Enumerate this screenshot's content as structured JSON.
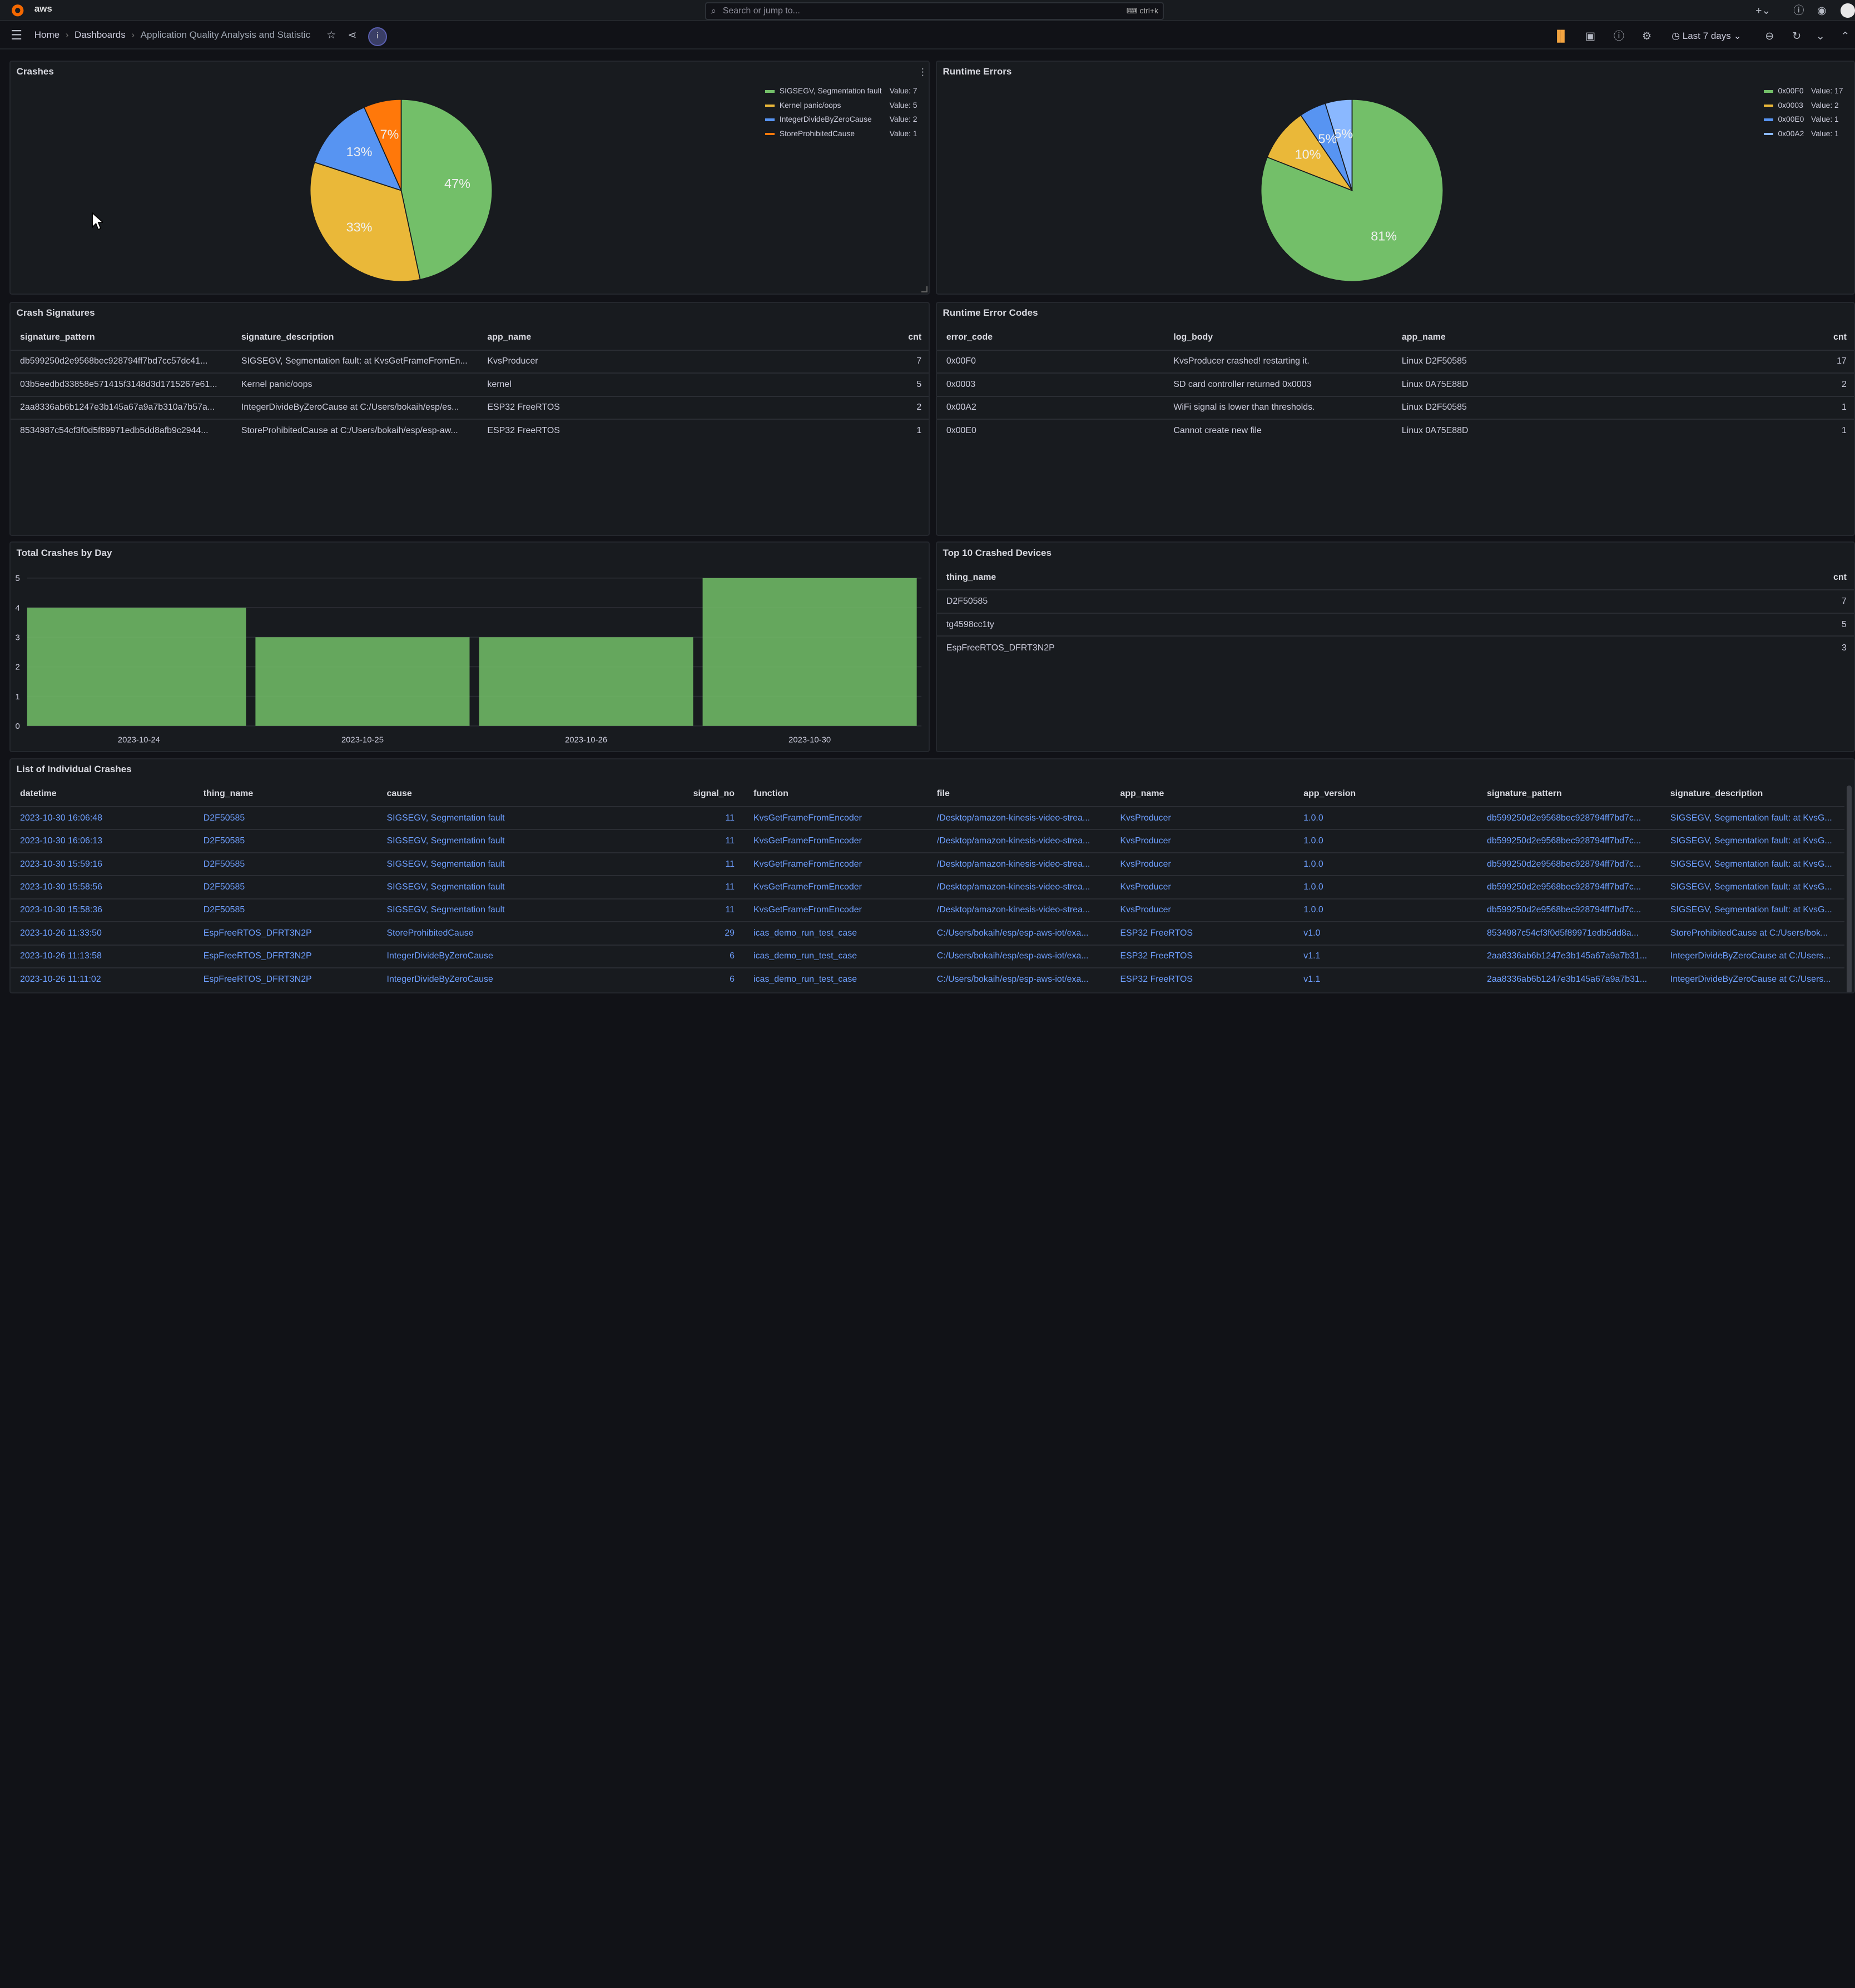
{
  "app": {
    "brand_text": "aws"
  },
  "topbar": {
    "search_placeholder": "Search or jump to...",
    "search_shortcut": "ctrl+k"
  },
  "breadcrumb": {
    "home": "Home",
    "dashboards": "Dashboards",
    "current": "Application Quality Analysis and Statistic"
  },
  "toolbar": {
    "time_range": "Last 7 days"
  },
  "crashes_panel": {
    "title": "Crashes"
  },
  "runtime_panel": {
    "title": "Runtime Errors"
  },
  "crash_signatures": {
    "title": "Crash Signatures",
    "columns": [
      "signature_pattern",
      "signature_description",
      "app_name",
      "cnt"
    ],
    "rows": [
      [
        "db599250d2e9568bec928794ff7bd7cc57dc41...",
        "SIGSEGV, Segmentation fault: at KvsGetFrameFromEn...",
        "KvsProducer",
        "7"
      ],
      [
        "03b5eedbd33858e571415f3148d3d1715267e61...",
        "Kernel panic/oops",
        "kernel",
        "5"
      ],
      [
        "2aa8336ab6b1247e3b145a67a9a7b310a7b57a...",
        "IntegerDivideByZeroCause at C:/Users/bokaih/esp/es...",
        "ESP32 FreeRTOS",
        "2"
      ],
      [
        "8534987c54cf3f0d5f89971edb5dd8afb9c2944...",
        "StoreProhibitedCause at C:/Users/bokaih/esp/esp-aw...",
        "ESP32 FreeRTOS",
        "1"
      ]
    ]
  },
  "runtime_codes": {
    "title": "Runtime Error Codes",
    "columns": [
      "error_code",
      "log_body",
      "app_name",
      "cnt"
    ],
    "rows": [
      [
        "0x00F0",
        "KvsProducer crashed! restarting it.",
        "Linux D2F50585",
        "17"
      ],
      [
        "0x0003",
        "SD card controller returned 0x0003",
        "Linux 0A75E88D",
        "2"
      ],
      [
        "0x00A2",
        "WiFi signal is lower than thresholds.",
        "Linux D2F50585",
        "1"
      ],
      [
        "0x00E0",
        "Cannot create new file",
        "Linux 0A75E88D",
        "1"
      ]
    ]
  },
  "crashes_by_day": {
    "title": "Total Crashes by Day"
  },
  "top_devices": {
    "title": "Top 10 Crashed Devices",
    "columns": [
      "thing_name",
      "cnt"
    ],
    "rows": [
      [
        "D2F50585",
        "7"
      ],
      [
        "tg4598cc1ty",
        "5"
      ],
      [
        "EspFreeRTOS_DFRT3N2P",
        "3"
      ]
    ]
  },
  "crash_list": {
    "title": "List of Individual Crashes",
    "columns": [
      "datetime",
      "thing_name",
      "cause",
      "signal_no",
      "function",
      "file",
      "app_name",
      "app_version",
      "signature_pattern",
      "signature_description"
    ],
    "rows": [
      [
        "2023-10-30 16:06:48",
        "D2F50585",
        "SIGSEGV, Segmentation fault",
        "11",
        "KvsGetFrameFromEncoder",
        "/Desktop/amazon-kinesis-video-strea...",
        "KvsProducer",
        "1.0.0",
        "db599250d2e9568bec928794ff7bd7c...",
        "SIGSEGV, Segmentation fault: at KvsG..."
      ],
      [
        "2023-10-30 16:06:13",
        "D2F50585",
        "SIGSEGV, Segmentation fault",
        "11",
        "KvsGetFrameFromEncoder",
        "/Desktop/amazon-kinesis-video-strea...",
        "KvsProducer",
        "1.0.0",
        "db599250d2e9568bec928794ff7bd7c...",
        "SIGSEGV, Segmentation fault: at KvsG..."
      ],
      [
        "2023-10-30 15:59:16",
        "D2F50585",
        "SIGSEGV, Segmentation fault",
        "11",
        "KvsGetFrameFromEncoder",
        "/Desktop/amazon-kinesis-video-strea...",
        "KvsProducer",
        "1.0.0",
        "db599250d2e9568bec928794ff7bd7c...",
        "SIGSEGV, Segmentation fault: at KvsG..."
      ],
      [
        "2023-10-30 15:58:56",
        "D2F50585",
        "SIGSEGV, Segmentation fault",
        "11",
        "KvsGetFrameFromEncoder",
        "/Desktop/amazon-kinesis-video-strea...",
        "KvsProducer",
        "1.0.0",
        "db599250d2e9568bec928794ff7bd7c...",
        "SIGSEGV, Segmentation fault: at KvsG..."
      ],
      [
        "2023-10-30 15:58:36",
        "D2F50585",
        "SIGSEGV, Segmentation fault",
        "11",
        "KvsGetFrameFromEncoder",
        "/Desktop/amazon-kinesis-video-strea...",
        "KvsProducer",
        "1.0.0",
        "db599250d2e9568bec928794ff7bd7c...",
        "SIGSEGV, Segmentation fault: at KvsG..."
      ],
      [
        "2023-10-26 11:33:50",
        "EspFreeRTOS_DFRT3N2P",
        "StoreProhibitedCause",
        "29",
        "icas_demo_run_test_case",
        "C:/Users/bokaih/esp/esp-aws-iot/exa...",
        "ESP32 FreeRTOS",
        "v1.0",
        "8534987c54cf3f0d5f89971edb5dd8a...",
        "StoreProhibitedCause at C:/Users/bok..."
      ],
      [
        "2023-10-26 11:13:58",
        "EspFreeRTOS_DFRT3N2P",
        "IntegerDivideByZeroCause",
        "6",
        "icas_demo_run_test_case",
        "C:/Users/bokaih/esp/esp-aws-iot/exa...",
        "ESP32 FreeRTOS",
        "v1.1",
        "2aa8336ab6b1247e3b145a67a9a7b31...",
        "IntegerDivideByZeroCause at C:/Users..."
      ],
      [
        "2023-10-26 11:11:02",
        "EspFreeRTOS_DFRT3N2P",
        "IntegerDivideByZeroCause",
        "6",
        "icas_demo_run_test_case",
        "C:/Users/bokaih/esp/esp-aws-iot/exa...",
        "ESP32 FreeRTOS",
        "v1.1",
        "2aa8336ab6b1247e3b145a67a9a7b31...",
        "IntegerDivideByZeroCause at C:/Users..."
      ]
    ]
  },
  "colors": {
    "green": "#73bf69",
    "yellow": "#f2cc0c",
    "blue": "#5794f2",
    "orange": "#ff780a",
    "link": "#6e9fff"
  },
  "chart_data": [
    {
      "type": "pie",
      "title": "Crashes",
      "series": [
        {
          "name": "SIGSEGV, Segmentation fault",
          "value": 7,
          "label": "47%",
          "value_text": "Value: 7",
          "color": "#73bf69"
        },
        {
          "name": "Kernel panic/oops",
          "value": 5,
          "label": "33%",
          "value_text": "Value: 5",
          "color": "#eab839"
        },
        {
          "name": "IntegerDivideByZeroCause",
          "value": 2,
          "label": "13%",
          "value_text": "Value: 2",
          "color": "#5794f2"
        },
        {
          "name": "StoreProhibitedCause",
          "value": 1,
          "label": "7%",
          "value_text": "Value: 1",
          "color": "#ff780a"
        }
      ],
      "legend": "top-right"
    },
    {
      "type": "pie",
      "title": "Runtime Errors",
      "series": [
        {
          "name": "0x00F0",
          "value": 17,
          "label": "81%",
          "value_text": "Value: 17",
          "color": "#73bf69"
        },
        {
          "name": "0x0003",
          "value": 2,
          "label": "10%",
          "value_text": "Value: 2",
          "color": "#eab839"
        },
        {
          "name": "0x00E0",
          "value": 1,
          "label": "5%",
          "value_text": "Value: 1",
          "color": "#5794f2"
        },
        {
          "name": "0x00A2",
          "value": 1,
          "label": "5%",
          "value_text": "Value: 1",
          "color": "#8ab8ff"
        }
      ],
      "legend": "top-right"
    },
    {
      "type": "bar",
      "title": "Total Crashes by Day",
      "categories": [
        "2023-10-24",
        "2023-10-25",
        "2023-10-26",
        "2023-10-30"
      ],
      "values": [
        4,
        3,
        3,
        5
      ],
      "ylim": [
        0,
        5
      ],
      "yticks": [
        "0",
        "1",
        "2",
        "3",
        "4",
        "5"
      ],
      "grid": true,
      "color": "#73bf69"
    }
  ]
}
